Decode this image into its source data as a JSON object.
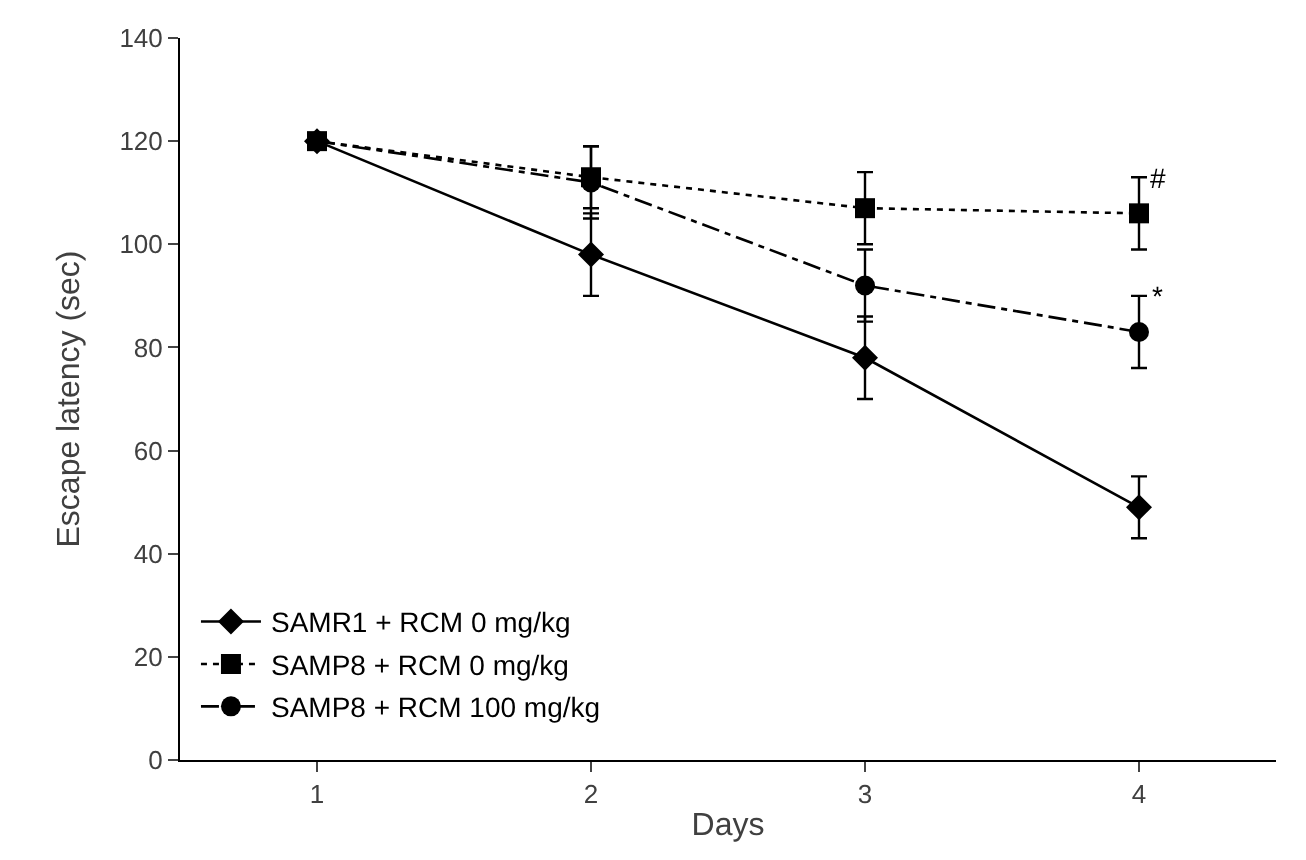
{
  "chart_data": {
    "type": "line",
    "xlabel": "Days",
    "ylabel": "Escape latency (sec)",
    "categories": [
      "1",
      "2",
      "3",
      "4"
    ],
    "series": [
      {
        "name": "SAMR1 + RCM 0 mg/kg",
        "color": "#000000",
        "marker": "diamond",
        "line_style": "solid",
        "values": [
          120,
          98,
          78,
          49
        ],
        "errors": [
          null,
          8,
          8,
          6
        ]
      },
      {
        "name": "SAMP8 + RCM 0 mg/kg",
        "color": "#000000",
        "marker": "square",
        "line_style": "dotted",
        "values": [
          120,
          113,
          107,
          106
        ],
        "errors": [
          null,
          6,
          7,
          7
        ]
      },
      {
        "name": "SAMP8 + RCM 100 mg/kg",
        "color": "#000000",
        "marker": "circle",
        "line_style": "dashed",
        "values": [
          120,
          112,
          92,
          83
        ],
        "errors": [
          null,
          7,
          7,
          7
        ]
      }
    ],
    "ylim": [
      0,
      140
    ],
    "yticks": [
      0,
      20,
      40,
      60,
      80,
      100,
      120,
      140
    ],
    "annotations": [
      {
        "text": "#",
        "x": "4",
        "y": 113
      },
      {
        "text": "*",
        "x": "4",
        "y": 90
      }
    ],
    "legend": "bottom left"
  }
}
